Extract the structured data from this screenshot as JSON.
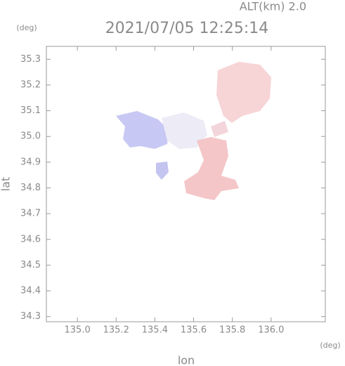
{
  "chart_data": {
    "type": "map",
    "title": "2021/07/05 12:25:14",
    "subtitle": "ALT(km) 2.0",
    "x_label": "lon",
    "y_label": "lat",
    "x_unit": "(deg)",
    "y_unit": "(deg)",
    "xlim": [
      134.84,
      136.28
    ],
    "ylim": [
      34.28,
      35.35
    ],
    "xticks": [
      {
        "value": 135,
        "label": "135.0"
      },
      135.2,
      135.4,
      135.6,
      135.8,
      {
        "value": 136,
        "label": "136.0"
      }
    ],
    "yticks": [
      34.3,
      34.4,
      34.5,
      34.6,
      34.7,
      34.8,
      34.9,
      {
        "value": 35,
        "label": "35.0"
      },
      35.1,
      35.2,
      35.3
    ]
  }
}
